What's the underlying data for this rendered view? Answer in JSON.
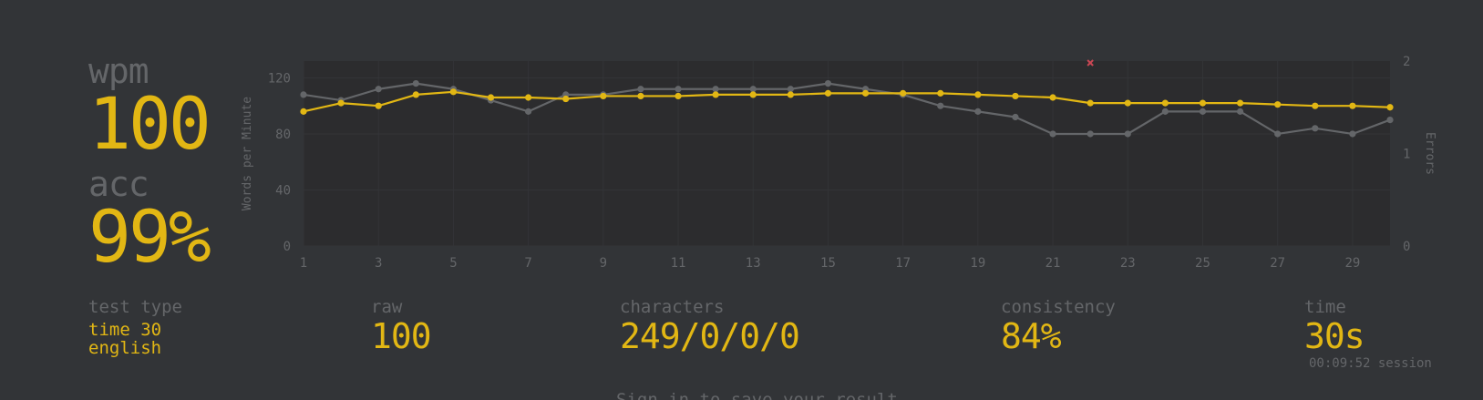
{
  "stats": {
    "wpm_label": "wpm",
    "wpm_value": "100",
    "acc_label": "acc",
    "acc_value": "99%"
  },
  "details": {
    "test_type_label": "test type",
    "test_type_mode": "time 30",
    "test_type_language": "english",
    "raw_label": "raw",
    "raw_value": "100",
    "characters_label": "characters",
    "characters_value": "249/0/0/0",
    "consistency_label": "consistency",
    "consistency_value": "84%",
    "time_label": "time",
    "time_value": "30s",
    "session_time": "00:09:52 session"
  },
  "footer": {
    "signin_text": "Sign in to save your result"
  },
  "colors": {
    "background": "#323437",
    "chart_bg": "#2c2c2e",
    "accent": "#e2b714",
    "sub": "#646669",
    "error": "#ca4754"
  },
  "chart_data": {
    "type": "line",
    "x": [
      1,
      2,
      3,
      4,
      5,
      6,
      7,
      8,
      9,
      10,
      11,
      12,
      13,
      14,
      15,
      16,
      17,
      18,
      19,
      20,
      21,
      22,
      23,
      24,
      25,
      26,
      27,
      28,
      29,
      30
    ],
    "x_ticks": [
      1,
      3,
      5,
      7,
      9,
      11,
      13,
      15,
      17,
      19,
      21,
      23,
      25,
      27,
      29
    ],
    "y_ticks": [
      0,
      40,
      80,
      120
    ],
    "y2_ticks": [
      0,
      1,
      2
    ],
    "ylabel": "Words per Minute",
    "y2label": "Errors",
    "ylim": [
      0,
      132
    ],
    "y2lim": [
      0,
      2
    ],
    "grid": true,
    "series": [
      {
        "color": "#e2b714",
        "values": [
          96,
          102,
          100,
          108,
          110,
          106,
          106,
          105,
          107,
          107,
          107,
          108,
          108,
          108,
          109,
          109,
          109,
          109,
          108,
          107,
          106,
          102,
          102,
          102,
          102,
          102,
          101,
          100,
          100,
          99
        ]
      },
      {
        "color": "#646669",
        "values": [
          108,
          104,
          112,
          116,
          112,
          104,
          96,
          108,
          108,
          112,
          112,
          112,
          112,
          112,
          116,
          112,
          108,
          100,
          96,
          92,
          80,
          80,
          80,
          96,
          96,
          96,
          80,
          84,
          80,
          90
        ]
      }
    ],
    "errors": [
      {
        "x": 22,
        "count": 2
      }
    ]
  }
}
